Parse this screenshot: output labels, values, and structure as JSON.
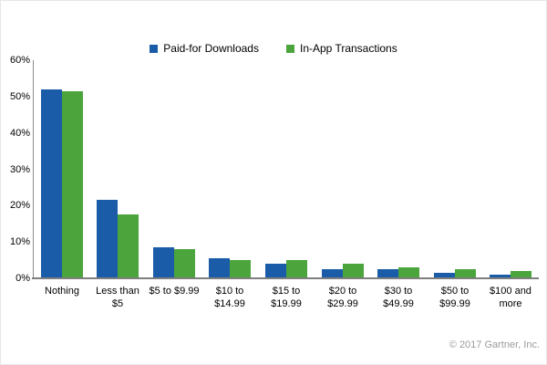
{
  "legend": {
    "items": [
      {
        "label": "Paid-for Downloads",
        "color": "#1A5CA8"
      },
      {
        "label": "In-App Transactions",
        "color": "#4BA43C"
      }
    ]
  },
  "footer": {
    "copyright": "© 2017 Gartner, Inc."
  },
  "colors": {
    "blue": "#1A5CA8",
    "green": "#4BA43C",
    "axis": "#7f7f7f"
  },
  "chart_data": {
    "type": "bar",
    "title": "",
    "categories": [
      "Nothing",
      "Less than\n$5",
      "$5 to $9.99",
      "$10 to\n$14.99",
      "$15 to\n$19.99",
      "$20 to\n$29.99",
      "$30 to\n$49.99",
      "$50 to\n$99.99",
      "$100 and\nmore"
    ],
    "series": [
      {
        "name": "Paid-for Downloads",
        "color": "#1A5CA8",
        "values": [
          52,
          21.5,
          8.5,
          5.5,
          4,
          2.5,
          2.5,
          1.5,
          1
        ]
      },
      {
        "name": "In-App Transactions",
        "color": "#4BA43C",
        "values": [
          51.5,
          17.5,
          8,
          5,
          5,
          4,
          3,
          2.5,
          2
        ]
      }
    ],
    "xlabel": "",
    "ylabel": "",
    "ylim": [
      0,
      60
    ],
    "ytick_step": 10,
    "ytick_suffix": "%",
    "grid": false,
    "legend_position": "top"
  }
}
